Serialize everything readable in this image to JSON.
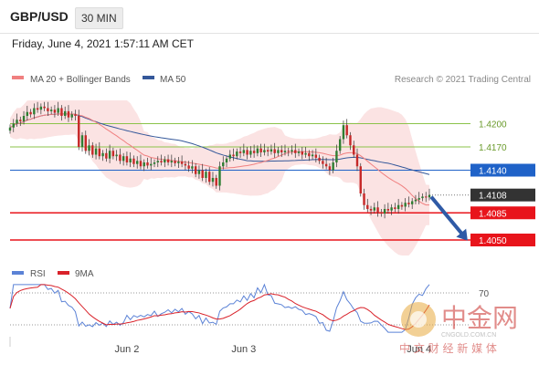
{
  "header": {
    "pair": "GBP/USD",
    "timeframe": "30 MIN"
  },
  "timestamp": "Friday, June 4, 2021 1:57:11 AM CET",
  "legend": {
    "ma20": "MA 20 + Bollinger Bands",
    "ma50": "MA 50"
  },
  "research": "Research © 2021 Trading Central",
  "rsi_legend": {
    "rsi": "RSI",
    "ma9": "9MA"
  },
  "rsi_level": "70",
  "watermark": {
    "name": "中金网",
    "slogan": "中 文 财 经 新 媒 体",
    "url": "CNGOLD.COM.CN"
  },
  "colors": {
    "support": "#e8141b",
    "resistance": "#8bc34a",
    "pivot": "#1f62c8",
    "current": "#333333",
    "ma20": "#f08080",
    "ma50": "#35589a",
    "rsi": "#5b82d6",
    "ma9": "#d9222a",
    "arrow": "#2f5aa6",
    "bands": "#fbe3e3"
  },
  "chart_data": {
    "type": "candlestick",
    "symbol": "GBP/USD",
    "interval": "30 MIN",
    "price_range": [
      1.403,
      1.423
    ],
    "x_labels": [
      "Jun 2",
      "Jun 3",
      "Jun 4"
    ],
    "levels": [
      {
        "label": "1.4200",
        "value": 1.42,
        "kind": "resistance"
      },
      {
        "label": "1.4170",
        "value": 1.417,
        "kind": "resistance"
      },
      {
        "label": "1.4140",
        "value": 1.414,
        "kind": "pivot"
      },
      {
        "label": "1.4108",
        "value": 1.4108,
        "kind": "current"
      },
      {
        "label": "1.4085",
        "value": 1.4085,
        "kind": "support"
      },
      {
        "label": "1.4050",
        "value": 1.405,
        "kind": "support"
      }
    ],
    "projection": {
      "from": 1.4108,
      "to": 1.405,
      "direction": "down"
    },
    "close_path": [
      1.4195,
      1.42,
      1.4205,
      1.4203,
      1.421,
      1.4215,
      1.4212,
      1.422,
      1.4218,
      1.4222,
      1.422,
      1.4216,
      1.4218,
      1.4214,
      1.422,
      1.421,
      1.4216,
      1.4208,
      1.4212,
      1.421,
      1.417,
      1.4185,
      1.4165,
      1.4172,
      1.416,
      1.4168,
      1.4158,
      1.4162,
      1.4155,
      1.4165,
      1.4158,
      1.416,
      1.4152,
      1.4158,
      1.415,
      1.4155,
      1.4148,
      1.4152,
      1.4145,
      1.415,
      1.4146,
      1.4148,
      1.415,
      1.4152,
      1.415,
      1.4154,
      1.415,
      1.4152,
      1.4149,
      1.4151,
      1.4148,
      1.4146,
      1.4142,
      1.4145,
      1.4135,
      1.414,
      1.413,
      1.4138,
      1.4125,
      1.413,
      1.412,
      1.4145,
      1.415,
      1.4155,
      1.416,
      1.4158,
      1.4164,
      1.4162,
      1.4166,
      1.416,
      1.4165,
      1.4162,
      1.4168,
      1.4163,
      1.4166,
      1.4164,
      1.4167,
      1.4162,
      1.4166,
      1.4163,
      1.4165,
      1.4164,
      1.4166,
      1.4162,
      1.4164,
      1.416,
      1.4162,
      1.4158,
      1.416,
      1.4156,
      1.4152,
      1.4148,
      1.4145,
      1.414,
      1.415,
      1.4165,
      1.418,
      1.4198,
      1.4185,
      1.4172,
      1.416,
      1.4145,
      1.411,
      1.4095,
      1.409,
      1.4088,
      1.4092,
      1.4086,
      1.4084,
      1.409,
      1.4088,
      1.4092,
      1.409,
      1.4095,
      1.4093,
      1.4098,
      1.4096,
      1.41,
      1.4102,
      1.4104,
      1.4106,
      1.4105,
      1.4108
    ],
    "rsi_range": [
      20,
      80
    ],
    "rsi_reference": 70
  }
}
